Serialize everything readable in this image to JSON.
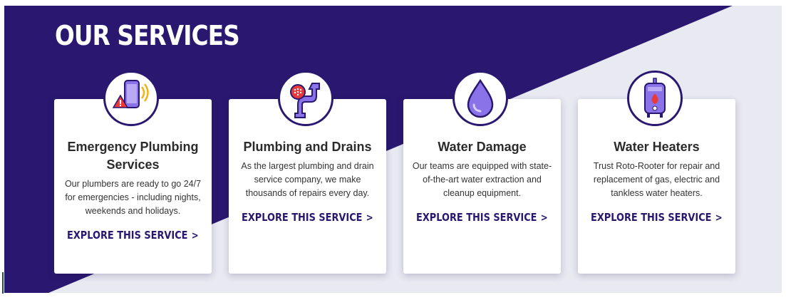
{
  "section": {
    "title": "OUR SERVICES",
    "colors": {
      "primary": "#2a1870",
      "light_bg": "#e9e9f2"
    }
  },
  "services": [
    {
      "title": "Emergency Plumbing Services",
      "description": "Our plumbers are ready to go 24/7 for emergencies - including nights, weekends and holidays.",
      "link_label": "EXPLORE THIS SERVICE",
      "link_chevron": ">",
      "icon": "phone-alert-icon"
    },
    {
      "title": "Plumbing and Drains",
      "description": "As the largest plumbing and drain service company, we make thousands of repairs every day.",
      "link_label": "EXPLORE THIS SERVICE",
      "link_chevron": ">",
      "icon": "pipe-drain-icon"
    },
    {
      "title": "Water Damage",
      "description": "Our teams are equipped with state-of-the-art water extraction and cleanup equipment.",
      "link_label": "EXPLORE THIS SERVICE",
      "link_chevron": ">",
      "icon": "water-drop-icon"
    },
    {
      "title": "Water Heaters",
      "description": "Trust Roto-Rooter for repair and replacement of gas, electric and tankless water heaters.",
      "link_label": "EXPLORE THIS SERVICE",
      "link_chevron": ">",
      "icon": "water-heater-icon"
    }
  ]
}
